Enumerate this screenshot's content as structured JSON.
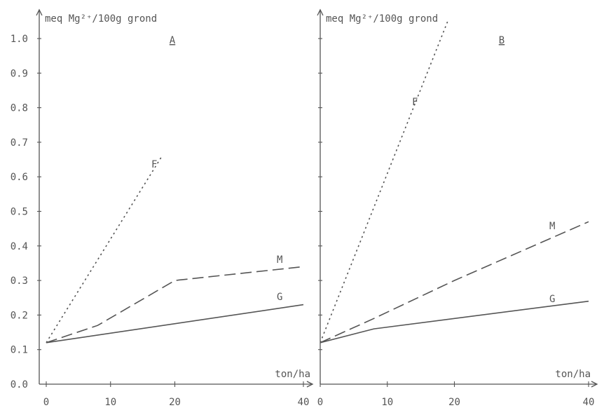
{
  "chart_data": [
    {
      "type": "line",
      "panel_label": "A",
      "ylabel": "meq Mg²⁺/100g grond",
      "xlabel": "ton/ha",
      "xlim": [
        0,
        40
      ],
      "ylim": [
        0,
        1.0
      ],
      "x_ticks": [
        "0",
        "10",
        "20",
        "40"
      ],
      "y_ticks": [
        "0.0",
        "0.1",
        "0.2",
        "0.3",
        "0.4",
        "0.5",
        "0.6",
        "0.7",
        "0.8",
        "0.9",
        "1.0"
      ],
      "series": [
        {
          "name": "F",
          "style": "dotted",
          "points": [
            [
              0,
              0.12
            ],
            [
              18,
              0.66
            ]
          ]
        },
        {
          "name": "M",
          "style": "dashed",
          "points": [
            [
              0,
              0.12
            ],
            [
              8,
              0.17
            ],
            [
              20,
              0.3
            ],
            [
              40,
              0.34
            ]
          ]
        },
        {
          "name": "G",
          "style": "solid",
          "points": [
            [
              0,
              0.12
            ],
            [
              40,
              0.23
            ]
          ]
        }
      ]
    },
    {
      "type": "line",
      "panel_label": "B",
      "ylabel": "meq Mg²⁺/100g grond",
      "xlabel": "ton/ha",
      "xlim": [
        0,
        40
      ],
      "ylim": [
        0,
        1.0
      ],
      "x_ticks": [
        "0",
        "10",
        "20",
        "40"
      ],
      "series": [
        {
          "name": "F",
          "style": "dotted",
          "points": [
            [
              0,
              0.12
            ],
            [
              19,
              1.05
            ]
          ]
        },
        {
          "name": "M",
          "style": "dashed",
          "points": [
            [
              0,
              0.12
            ],
            [
              8,
              0.19
            ],
            [
              20,
              0.3
            ],
            [
              40,
              0.47
            ]
          ]
        },
        {
          "name": "G",
          "style": "solid",
          "points": [
            [
              0,
              0.12
            ],
            [
              8,
              0.16
            ],
            [
              40,
              0.24
            ]
          ]
        }
      ]
    }
  ]
}
